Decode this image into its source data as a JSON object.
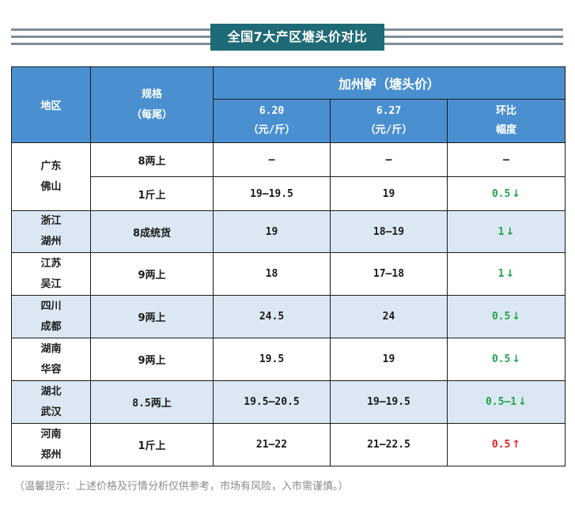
{
  "title": "全国7大产区塘头价对比",
  "header": {
    "region": "地区",
    "spec_line1": "规格",
    "spec_line2": "（每尾）",
    "group": "加州鲈（塘头价）",
    "col1_line1": "6.20",
    "col1_line2": "（元/斤）",
    "col2_line1": "6.27",
    "col2_line2": "（元/斤）",
    "col3_line1": "环比",
    "col3_line2": "幅度"
  },
  "rows": [
    {
      "region1": "广东",
      "region2": "佛山",
      "spec": "8两上",
      "p1": "–",
      "p2": "–",
      "change": "–",
      "dir": ""
    },
    {
      "spec": "1斤上",
      "p1": "19–19.5",
      "p2": "19",
      "change": "0.5",
      "dir": "down"
    },
    {
      "region1": "浙江",
      "region2": "湖州",
      "spec": "8成统货",
      "p1": "19",
      "p2": "18–19",
      "change": "1",
      "dir": "down"
    },
    {
      "region1": "江苏",
      "region2": "吴江",
      "spec": "9两上",
      "p1": "18",
      "p2": "17–18",
      "change": "1",
      "dir": "down"
    },
    {
      "region1": "四川",
      "region2": "成都",
      "spec": "9两上",
      "p1": "24.5",
      "p2": "24",
      "change": "0.5",
      "dir": "down"
    },
    {
      "region1": "湖南",
      "region2": "华容",
      "spec": "9两上",
      "p1": "19.5",
      "p2": "19",
      "change": "0.5",
      "dir": "down"
    },
    {
      "region1": "湖北",
      "region2": "武汉",
      "spec": "8.5两上",
      "p1": "19.5–20.5",
      "p2": "19–19.5",
      "change": "0.5–1",
      "dir": "down"
    },
    {
      "region1": "河南",
      "region2": "郑州",
      "spec": "1斤上",
      "p1": "21–22",
      "p2": "21–22.5",
      "change": "0.5",
      "dir": "up"
    }
  ],
  "arrows": {
    "down": "↓",
    "up": "↑"
  },
  "colors": {
    "title_bg": "#1e6a76",
    "header_bg": "#4a90d0",
    "shade": "#dbe8f3",
    "down": "#1fa34a",
    "up": "#e0242e"
  },
  "note": "（温馨提示：上述价格及行情分析仅供参考，市场有风险，入市需谨慎。）"
}
